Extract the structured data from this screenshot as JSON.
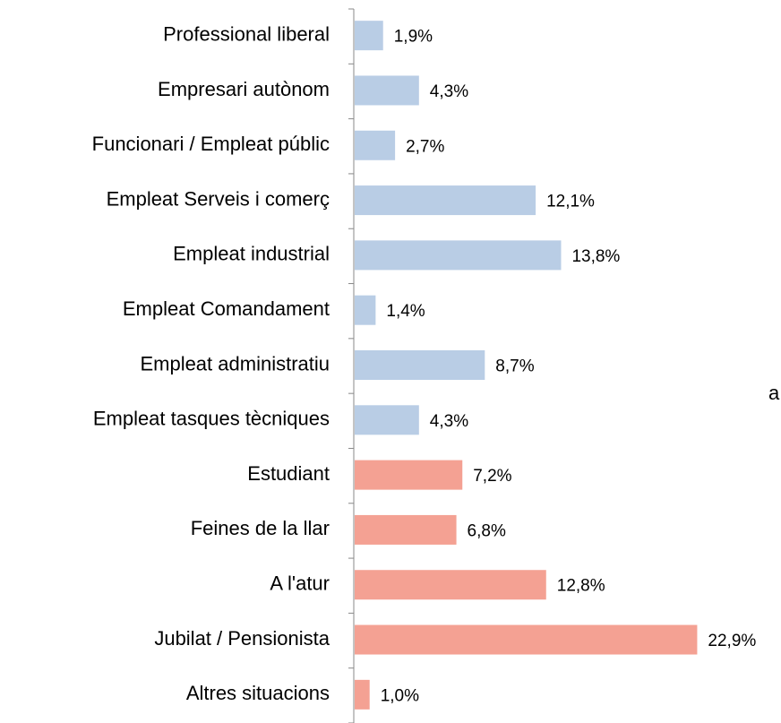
{
  "chart_data": {
    "type": "bar",
    "orientation": "horizontal",
    "categories": [
      "Professional liberal",
      "Empresari autònom",
      "Funcionari / Empleat públic",
      "Empleat Serveis i comerç",
      "Empleat industrial",
      "Empleat Comandament",
      "Empleat administratiu",
      "Empleat tasques tècniques",
      "Estudiant",
      "Feines de la llar",
      "A l'atur",
      "Jubilat / Pensionista",
      "Altres situacions"
    ],
    "values": [
      1.9,
      4.3,
      2.7,
      12.1,
      13.8,
      1.4,
      8.7,
      4.3,
      7.2,
      6.8,
      12.8,
      22.9,
      1.0
    ],
    "value_labels": [
      "1,9%",
      "4,3%",
      "2,7%",
      "12,1%",
      "13,8%",
      "1,4%",
      "8,7%",
      "4,3%",
      "7,2%",
      "6,8%",
      "12,8%",
      "22,9%",
      "1,0%"
    ],
    "colors": [
      "#b9cde5",
      "#b9cde5",
      "#b9cde5",
      "#b9cde5",
      "#b9cde5",
      "#b9cde5",
      "#b9cde5",
      "#b9cde5",
      "#f4a193",
      "#f4a193",
      "#f4a193",
      "#f4a193",
      "#f4a193"
    ],
    "annotation": "a"
  }
}
